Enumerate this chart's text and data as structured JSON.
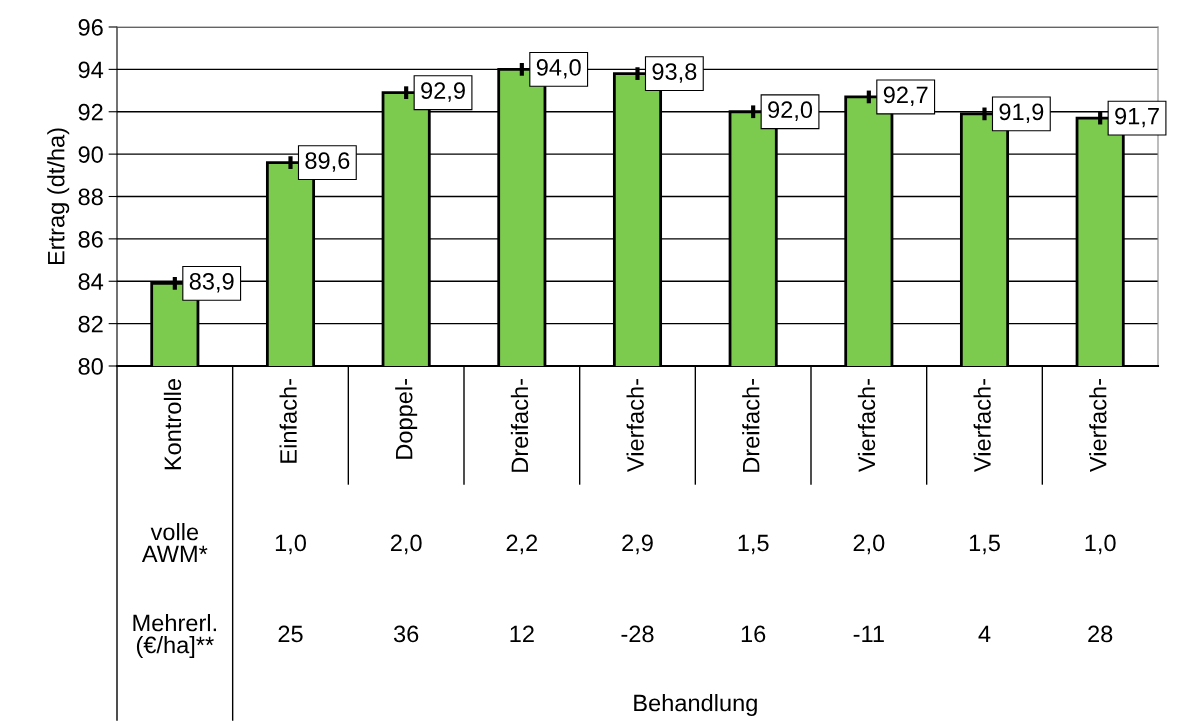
{
  "chart_data": {
    "type": "bar",
    "ylabel": "Ertrag (dt/ha)",
    "categories": [
      "Kontrolle",
      "Einfach-",
      "Doppel-",
      "Dreifach-",
      "Vierfach-",
      "Dreifach-",
      "Vierfach-",
      "Vierfach-",
      "Vierfach-"
    ],
    "values": [
      83.9,
      89.6,
      92.9,
      94.0,
      93.8,
      92.0,
      92.7,
      91.9,
      91.7
    ],
    "value_labels": [
      "83,9",
      "89,6",
      "92,9",
      "94,0",
      "93,8",
      "92,0",
      "92,7",
      "91,9",
      "91,7"
    ],
    "errors": [
      0.3,
      0.3,
      0.3,
      0.3,
      0.3,
      0.3,
      0.3,
      0.3,
      0.3
    ],
    "color": "#7ccb4e",
    "ylim": [
      80,
      96
    ],
    "yticks": [
      80,
      82,
      84,
      86,
      88,
      90,
      92,
      94,
      96
    ],
    "grid": "y",
    "annotations": [
      "volle\nAWM*",
      "1,0",
      "2,0",
      "2,2",
      "2,9",
      "1,5",
      "2,0",
      "1,5",
      "1,0",
      "Mehrerl.\n(€/ha]**",
      "25",
      "36",
      "12",
      "-28",
      "16",
      "-11",
      "4",
      "28",
      "Behandlung"
    ]
  }
}
